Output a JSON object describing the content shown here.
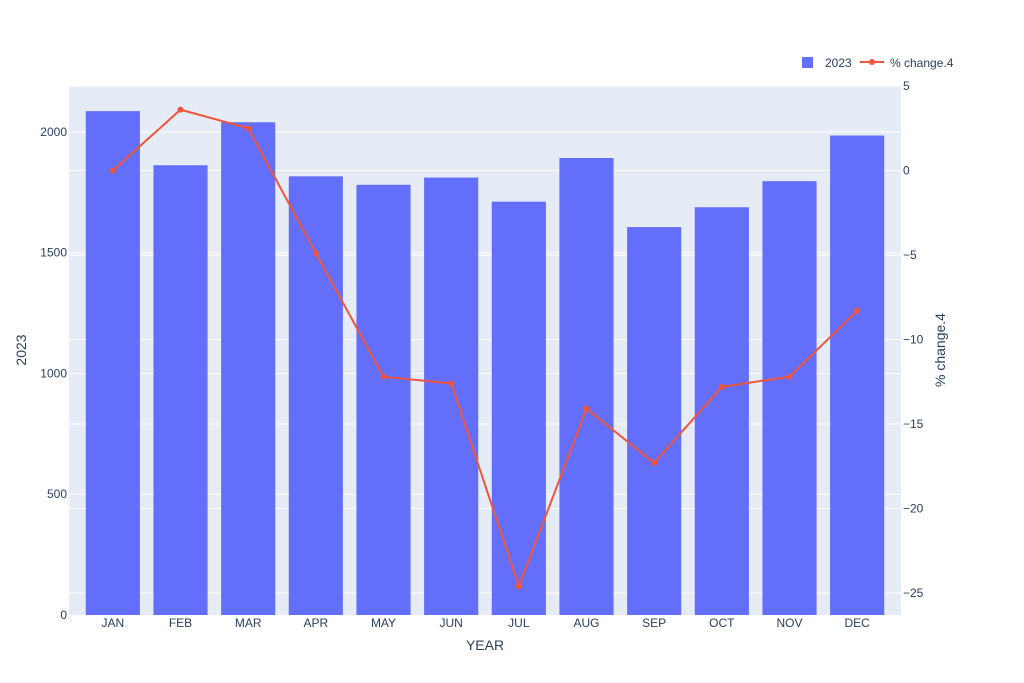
{
  "chart_data": {
    "type": "bar",
    "categories": [
      "JAN",
      "FEB",
      "MAR",
      "APR",
      "MAY",
      "JUN",
      "JUL",
      "AUG",
      "SEP",
      "OCT",
      "NOV",
      "DEC"
    ],
    "xlabel": "YEAR",
    "ylabel": "2023",
    "y2label": "% change.4",
    "ylim": [
      0,
      2190
    ],
    "y2lim": [
      -26.3,
      5
    ],
    "yticks": [
      0,
      500,
      1000,
      1500,
      2000
    ],
    "y2ticks": [
      5,
      0,
      -5,
      -10,
      -15,
      -20,
      -25
    ],
    "grid": true,
    "legend_position": "top-right",
    "series": [
      {
        "name": "2023",
        "type": "bar",
        "axis": "left",
        "color": "#636efa",
        "values": [
          2086,
          1862,
          2040,
          1816,
          1781,
          1811,
          1711,
          1892,
          1606,
          1688,
          1796,
          1985
        ]
      },
      {
        "name": "% change.4",
        "type": "line",
        "axis": "right",
        "color": "#ef553b",
        "values": [
          0.0,
          3.6,
          2.5,
          -4.9,
          -12.2,
          -12.6,
          -24.6,
          -14.1,
          -17.3,
          -12.8,
          -12.2,
          -8.3
        ]
      }
    ]
  }
}
